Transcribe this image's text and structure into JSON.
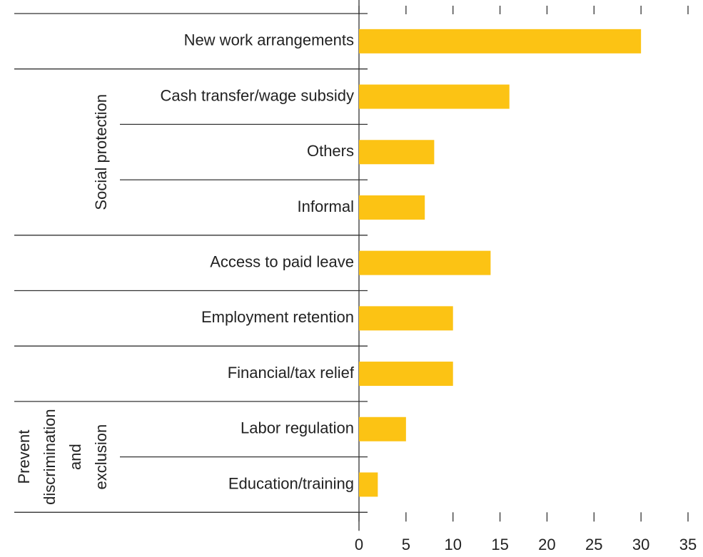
{
  "chart_data": {
    "type": "bar",
    "orientation": "horizontal",
    "categories": [
      "New work arrangements",
      "Cash transfer/wage subsidy",
      "Others",
      "Informal",
      "Access to paid leave",
      "Employment retention",
      "Financial/tax relief",
      "Labor regulation",
      "Education/training"
    ],
    "values": [
      30,
      16,
      8,
      7,
      14,
      10,
      10,
      5,
      2
    ],
    "color": "#fcc314",
    "xlim": [
      0,
      35
    ],
    "xticks": [
      0,
      5,
      10,
      15,
      20,
      25,
      30,
      35
    ],
    "groups": [
      {
        "lines": [
          "Social protection"
        ],
        "members": [
          "Cash transfer/wage subsidy",
          "Others",
          "Informal"
        ]
      },
      {
        "lines": [
          "Prevent",
          "discrimination",
          "and",
          "exclusion"
        ],
        "members": [
          "Labor regulation",
          "Education/training"
        ]
      }
    ]
  }
}
